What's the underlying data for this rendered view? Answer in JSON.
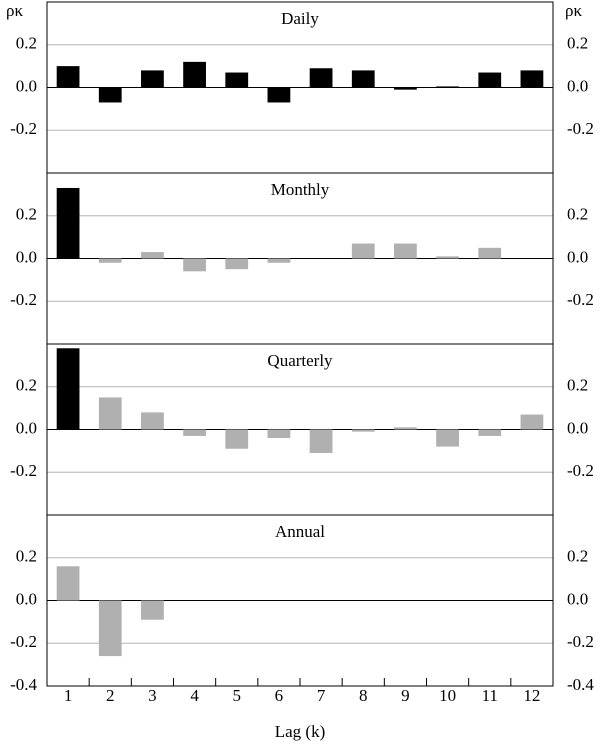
{
  "chart_data": {
    "type": "bar",
    "ylabel": "ρκ",
    "xlabel": "Lag (k)",
    "categories": [
      "1",
      "2",
      "3",
      "4",
      "5",
      "6",
      "7",
      "8",
      "9",
      "10",
      "11",
      "12"
    ],
    "grid": true,
    "panels": [
      {
        "title": "Daily",
        "values": [
          0.1,
          -0.07,
          0.08,
          0.12,
          0.07,
          -0.07,
          0.09,
          0.08,
          -0.01,
          0.005,
          0.07,
          0.08
        ],
        "colors": [
          "#000000",
          "#000000",
          "#000000",
          "#000000",
          "#000000",
          "#000000",
          "#000000",
          "#000000",
          "#000000",
          "#000000",
          "#000000",
          "#000000"
        ],
        "ylim": [
          -0.4,
          0.4
        ],
        "yticks": [
          -0.2,
          {
            "value": 0,
            "label": "0.0"
          },
          0.2
        ]
      },
      {
        "title": "Monthly",
        "values": [
          0.33,
          -0.02,
          0.03,
          -0.06,
          -0.05,
          -0.02,
          0,
          0.07,
          0.07,
          0.01,
          0.05,
          0
        ],
        "colors": [
          "#000000",
          "#b0b0b0",
          "#b0b0b0",
          "#b0b0b0",
          "#b0b0b0",
          "#b0b0b0",
          "#b0b0b0",
          "#b0b0b0",
          "#b0b0b0",
          "#b0b0b0",
          "#b0b0b0",
          "#b0b0b0"
        ],
        "ylim": [
          -0.4,
          0.4
        ],
        "yticks": [
          -0.2,
          {
            "value": 0,
            "label": "0.0"
          },
          0.2
        ]
      },
      {
        "title": "Quarterly",
        "values": [
          0.38,
          0.15,
          0.08,
          -0.03,
          -0.09,
          -0.04,
          -0.11,
          -0.01,
          0.01,
          -0.08,
          -0.03,
          0.07
        ],
        "colors": [
          "#000000",
          "#b0b0b0",
          "#b0b0b0",
          "#b0b0b0",
          "#b0b0b0",
          "#b0b0b0",
          "#b0b0b0",
          "#b0b0b0",
          "#b0b0b0",
          "#b0b0b0",
          "#b0b0b0",
          "#b0b0b0"
        ],
        "ylim": [
          -0.4,
          0.4
        ],
        "yticks": [
          -0.2,
          {
            "value": 0,
            "label": "0.0"
          },
          0.2
        ]
      },
      {
        "title": "Annual",
        "values": [
          0.16,
          -0.26,
          -0.09,
          null,
          null,
          null,
          null,
          null,
          null,
          null,
          null,
          null
        ],
        "colors": [
          "#b0b0b0",
          "#b0b0b0",
          "#b0b0b0",
          null,
          null,
          null,
          null,
          null,
          null,
          null,
          null,
          null
        ],
        "ylim": [
          -0.4,
          0.4
        ],
        "yticks": [
          -0.4,
          -0.2,
          {
            "value": 0,
            "label": "0.0"
          },
          0.2
        ]
      }
    ]
  }
}
